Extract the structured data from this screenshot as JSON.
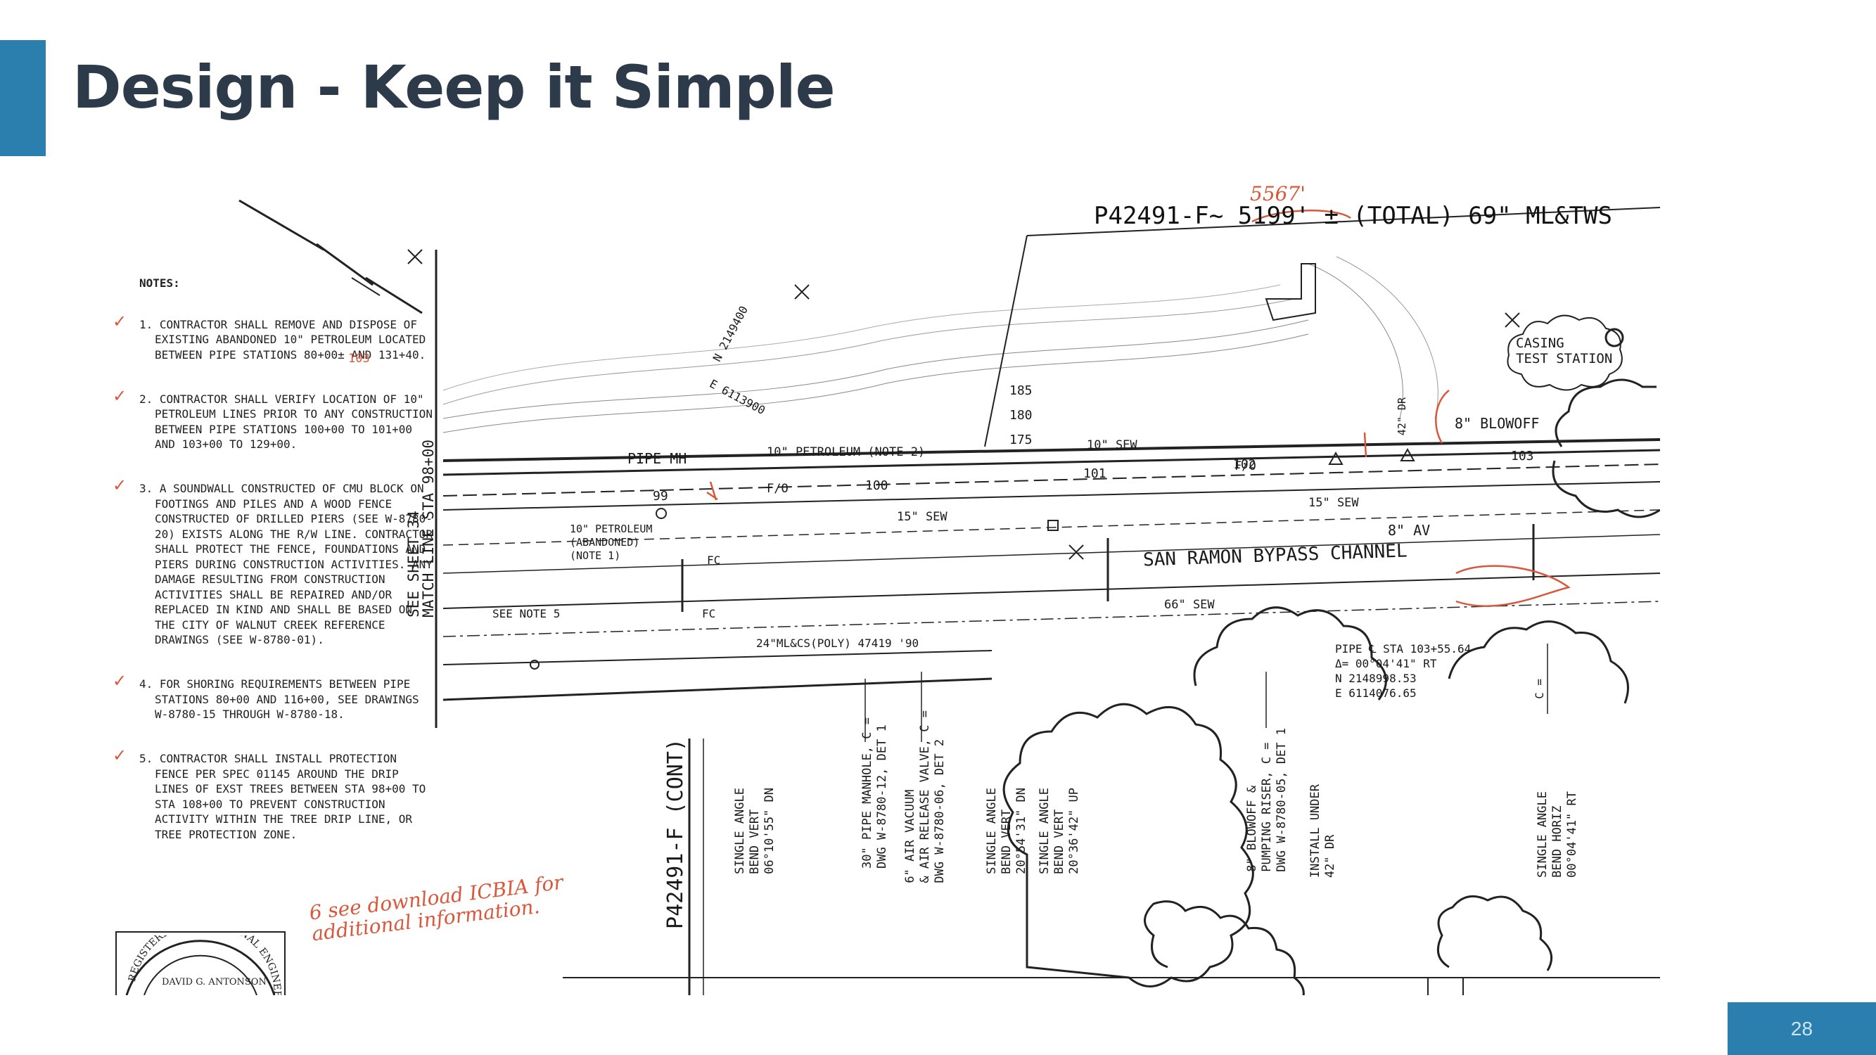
{
  "slide": {
    "title": "Design - Keep it Simple",
    "page_number": "28",
    "accent_color": "#2a7fae",
    "title_color": "#2d3a4a",
    "redline_color": "#d9573a"
  },
  "drawing": {
    "header": "P42491-F~ 5199' ± (TOTAL) 69\" ML&TWS",
    "header_redline": "5567'",
    "notes_heading": "NOTES:",
    "notes": [
      "1. CONTRACTOR SHALL REMOVE AND DISPOSE OF EXISTING ABANDONED 10\" PETROLEUM LOCATED BETWEEN PIPE STATIONS 80+00± AND 131+40.",
      "2. CONTRACTOR SHALL VERIFY LOCATION OF 10\" PETROLEUM LINES PRIOR TO ANY CONSTRUCTION BETWEEN PIPE STATIONS 100+00 TO 101+00 AND 103+00 TO 129+00.",
      "3. A SOUNDWALL CONSTRUCTED OF CMU BLOCK ON FOOTINGS AND PILES AND A WOOD FENCE CONSTRUCTED OF DRILLED PIERS (SEE W-8780-20) EXISTS ALONG THE R/W LINE. CONTRACTOR SHALL PROTECT THE FENCE, FOUNDATIONS AND PIERS DURING CONSTRUCTION ACTIVITIES. ANY DAMAGE RESULTING FROM CONSTRUCTION ACTIVITIES SHALL BE REPAIRED AND/OR REPLACED IN KIND AND SHALL BE BASED ON THE CITY OF WALNUT CREEK REFERENCE DRAWINGS (SEE W-8780-01).",
      "4. FOR SHORING REQUIREMENTS BETWEEN PIPE STATIONS 80+00 AND 116+00, SEE DRAWINGS W-8780-15 THROUGH W-8780-18.",
      "5. CONTRACTOR SHALL INSTALL PROTECTION FENCE PER SPEC 01145 AROUND THE DRIP LINES OF EXST TREES BETWEEN STA 98+00 TO STA 108+00 TO PREVENT CONSTRUCTION ACTIVITY WITHIN THE TREE DRIP LINE, OR TREE PROTECTION ZONE."
    ],
    "note_redline": "103",
    "match_line": "SEE SHEET 34\nMATCH LINE STA 98+00",
    "coord_north": "N 2149400",
    "coord_east": "E 6113900",
    "contours": [
      "185",
      "180",
      "175"
    ],
    "stations": [
      "99",
      "100",
      "101",
      "102",
      "103"
    ],
    "labels": {
      "pipe_mh": "PIPE MH",
      "petroleum_note2": "10\" PETROLEUM (NOTE 2)",
      "sew_10": "10\" SEW",
      "fo_1": "F/O",
      "fo_2": "F/O",
      "sew_15a": "15\" SEW",
      "sew_15b": "15\" SEW",
      "petroleum_abandoned": "10\" PETROLEUM\n(ABANDONED)\n(NOTE 1)",
      "fc_1": "FC",
      "fc_2": "FC",
      "see_note5": "SEE NOTE 5",
      "channel": "SAN RAMON BYPASS CHANNEL",
      "sew_66": "66\" SEW",
      "mlcs": "24\"ML&CS(POLY) 47419 '90",
      "blowoff": "8\" BLOWOFF",
      "av": "8\" AV",
      "dr_42": "42\" DR",
      "casing": "CASING\nTEST STATION",
      "pipe_sta": "PIPE ℄ STA 103+55.64\nΔ= 00°04'41\" RT\nN 2148998.53\nE 6114076.65",
      "c_eq": "C ="
    },
    "profile_title": "P42491-F (CONT)",
    "profile_labels": [
      "SINGLE ANGLE\nBEND VERT\n06°10'55\" DN",
      "30\" PIPE MANHOLE, C =\nDWG W-8780-12, DET 1",
      "6\" AIR VACUUM\n& AIR RELEASE VALVE, C =\nDWG W-8780-06, DET 2",
      "SINGLE ANGLE\nBEND VERT\n20°54'31\" DN",
      "SINGLE ANGLE\nBEND VERT\n20°36'42\" UP",
      "8\" BLOWOFF &\nPUMPING RISER, C =\nDWG W-8780-05, DET 1",
      "INSTALL UNDER\n42\" DR",
      "SINGLE ANGLE\nBEND HORIZ\n00°04'41\" RT"
    ],
    "handwritten_note": "6 see download ICBIA for additional information.",
    "seal_text": "REGISTERED PROFESSIONAL ENGINEER · DAVID G. ANTONSON"
  }
}
